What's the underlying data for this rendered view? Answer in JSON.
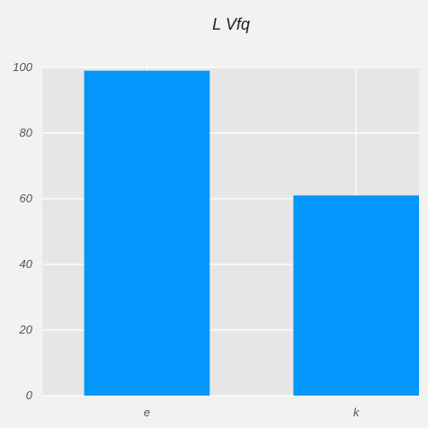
{
  "colors": {
    "bar": "#0397fc",
    "plot_background": "#e6e6e6",
    "grid": "#ffffff",
    "page_background": "#f2f2f2"
  },
  "chart_data": {
    "type": "bar",
    "title": "L  Vfq",
    "xlabel": "",
    "ylabel": "",
    "categories": [
      "e",
      "k"
    ],
    "values": [
      99,
      61
    ],
    "ylim": [
      0,
      100
    ],
    "yticks": [
      0,
      20,
      40,
      60,
      80,
      100
    ],
    "grid": true,
    "legend": "none"
  }
}
